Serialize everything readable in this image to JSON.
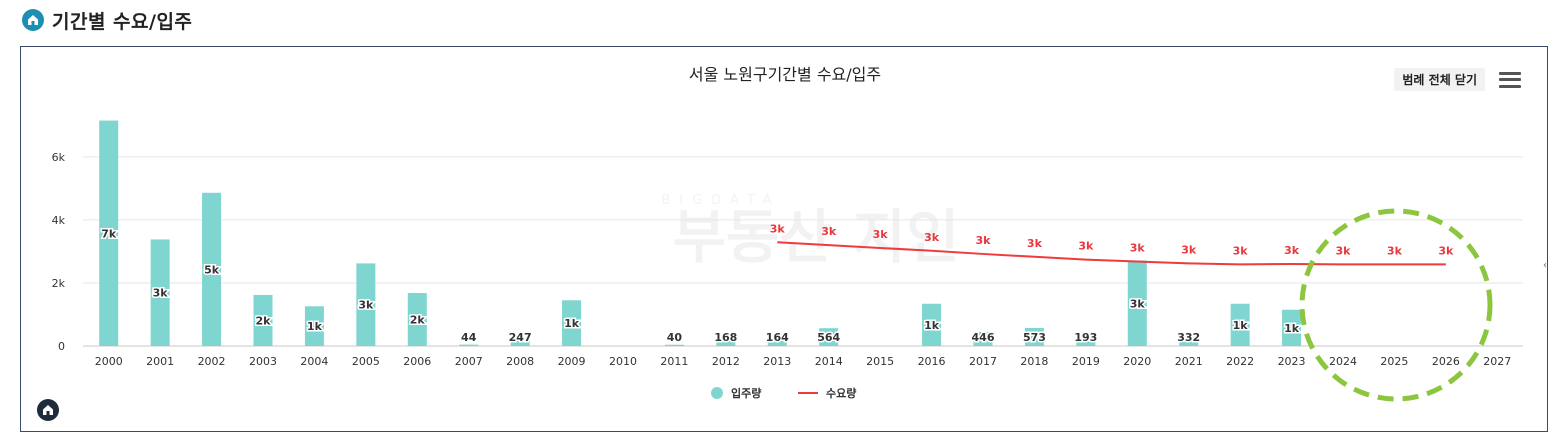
{
  "header": {
    "title": "기간별 수요/입주",
    "icon": "home-icon"
  },
  "toolbar": {
    "legend_toggle_label": "범례 전체 닫기",
    "menu_icon": "hamburger-menu-icon"
  },
  "watermark": {
    "text_small": "BIGDATA",
    "text_large": "부동산 지인"
  },
  "colors": {
    "bar": "#7fd6d1",
    "line": "#ef3b3b",
    "label_red": "#e8383d",
    "grid": "#e6e6e6",
    "axis_text": "#333333",
    "highlight_circle": "#8cc63f",
    "logo_bg": "#1f2b3d",
    "header_icon_bg": "#1c8fb3"
  },
  "chart_data": {
    "type": "bar",
    "title": "서울 노원구기간별 수요/입주",
    "categories": [
      "2000",
      "2001",
      "2002",
      "2003",
      "2004",
      "2005",
      "2006",
      "2007",
      "2008",
      "2009",
      "2010",
      "2011",
      "2012",
      "2013",
      "2014",
      "2015",
      "2016",
      "2017",
      "2018",
      "2019",
      "2020",
      "2021",
      "2022",
      "2023",
      "2024",
      "2025",
      "2026",
      "2027"
    ],
    "ylim": [
      0,
      7200
    ],
    "yticks": [
      0,
      2000,
      4000,
      6000
    ],
    "ytick_labels": [
      "0",
      "2k",
      "4k",
      "6k"
    ],
    "grid": true,
    "legend_position": "bottom-center",
    "series": [
      {
        "name": "입주량",
        "type": "bar",
        "values": [
          7150,
          3380,
          4860,
          1620,
          1260,
          2620,
          1680,
          44,
          247,
          1450,
          null,
          40,
          168,
          164,
          564,
          null,
          1340,
          446,
          573,
          193,
          2710,
          332,
          1340,
          1150,
          null,
          null,
          null,
          null
        ],
        "labels": [
          "7k",
          "3k",
          "5k",
          "2k",
          "1k",
          "3k",
          "2k",
          "44",
          "247",
          "1k",
          "",
          "40",
          "168",
          "164",
          "564",
          "",
          "1k",
          "446",
          "573",
          "193",
          "3k",
          "332",
          "1k",
          "1k",
          "",
          "",
          "",
          ""
        ]
      },
      {
        "name": "수요량",
        "type": "line",
        "values": [
          null,
          null,
          null,
          null,
          null,
          null,
          null,
          null,
          null,
          null,
          null,
          null,
          null,
          3290,
          3200,
          3110,
          3020,
          2920,
          2830,
          2740,
          2680,
          2620,
          2590,
          2600,
          2590,
          2590,
          2590,
          null
        ],
        "labels": [
          "",
          "",
          "",
          "",
          "",
          "",
          "",
          "",
          "",
          "",
          "",
          "",
          "",
          "3k",
          "3k",
          "3k",
          "3k",
          "3k",
          "3k",
          "3k",
          "3k",
          "3k",
          "3k",
          "3k",
          "3k",
          "3k",
          "3k",
          ""
        ]
      }
    ]
  }
}
